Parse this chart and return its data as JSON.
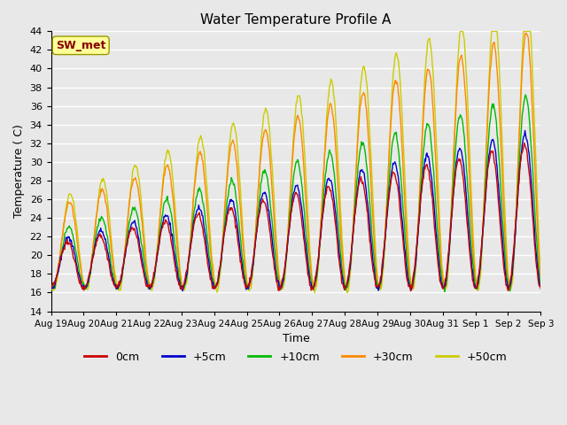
{
  "title": "Water Temperature Profile A",
  "xlabel": "Time",
  "ylabel": "Temperature ( C)",
  "ylim": [
    14,
    44
  ],
  "yticks": [
    14,
    16,
    18,
    20,
    22,
    24,
    26,
    28,
    30,
    32,
    34,
    36,
    38,
    40,
    42,
    44
  ],
  "x_labels": [
    "Aug 19",
    "Aug 20",
    "Aug 21",
    "Aug 22",
    "Aug 23",
    "Aug 24",
    "Aug 25",
    "Aug 26",
    "Aug 27",
    "Aug 28",
    "Aug 29",
    "Aug 30",
    "Aug 31",
    "Sep 1",
    "Sep 2",
    "Sep 3"
  ],
  "legend_labels": [
    "0cm",
    "+5cm",
    "+10cm",
    "+30cm",
    "+50cm"
  ],
  "legend_colors": [
    "#cc0000",
    "#0000cc",
    "#00bb00",
    "#ff8800",
    "#cccc00"
  ],
  "annotation_text": "SW_met",
  "annotation_box_color": "#ffff99",
  "annotation_text_color": "#880000",
  "background_color": "#e8e8e8",
  "plot_bg_color": "#e8e8e8",
  "grid_color": "#ffffff",
  "n_days": 15,
  "colors": {
    "0cm": "#cc0000",
    "+5cm": "#0000cc",
    "+10cm": "#00bb00",
    "+30cm": "#ff8800",
    "+50cm": "#cccc00"
  }
}
